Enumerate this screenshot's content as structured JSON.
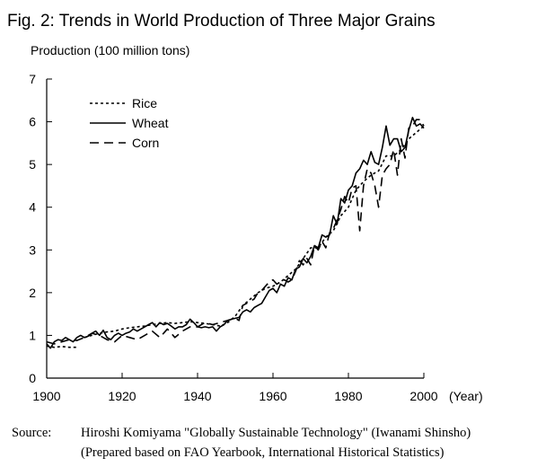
{
  "chart_data": {
    "type": "line",
    "title": "Fig. 2: Trends in World Production of Three Major Grains",
    "ylabel": "Production (100 million tons)",
    "xlabel": "(Year)",
    "xlim": [
      1900,
      2000
    ],
    "ylim": [
      0,
      7
    ],
    "xticks": [
      1900,
      1920,
      1940,
      1960,
      1980,
      2000
    ],
    "yticks": [
      0,
      1,
      2,
      3,
      4,
      5,
      6,
      7
    ],
    "grid": false,
    "legend_position": "top-left",
    "series": [
      {
        "name": "Rice",
        "style": "dotted",
        "segments": [
          [
            [
              1900,
              0.75
            ],
            [
              1902,
              0.72
            ],
            [
              1904,
              0.74
            ],
            [
              1906,
              0.72
            ],
            [
              1908,
              0.72
            ]
          ],
          [
            [
              1910,
              0.95
            ],
            [
              1912,
              1.0
            ],
            [
              1914,
              1.05
            ],
            [
              1916,
              1.08
            ],
            [
              1918,
              1.1
            ],
            [
              1920,
              1.15
            ],
            [
              1922,
              1.18
            ],
            [
              1924,
              1.2
            ],
            [
              1926,
              1.22
            ],
            [
              1928,
              1.25
            ],
            [
              1930,
              1.28
            ],
            [
              1932,
              1.3
            ],
            [
              1934,
              1.28
            ],
            [
              1936,
              1.3
            ],
            [
              1938,
              1.32
            ],
            [
              1940,
              1.3
            ],
            [
              1942,
              1.28
            ],
            [
              1944,
              1.25
            ],
            [
              1946,
              1.22
            ],
            [
              1948,
              1.3
            ],
            [
              1950,
              1.45
            ],
            [
              1952,
              1.7
            ],
            [
              1954,
              1.85
            ],
            [
              1956,
              2.0
            ],
            [
              1958,
              2.1
            ],
            [
              1960,
              2.15
            ],
            [
              1962,
              2.25
            ],
            [
              1964,
              2.4
            ],
            [
              1966,
              2.55
            ],
            [
              1968,
              2.8
            ],
            [
              1970,
              3.05
            ],
            [
              1972,
              3.05
            ],
            [
              1974,
              3.3
            ],
            [
              1976,
              3.45
            ],
            [
              1978,
              3.8
            ],
            [
              1980,
              4.0
            ],
            [
              1982,
              4.4
            ],
            [
              1984,
              4.6
            ],
            [
              1986,
              4.75
            ],
            [
              1988,
              4.85
            ],
            [
              1990,
              5.2
            ],
            [
              1992,
              5.2
            ],
            [
              1994,
              5.35
            ],
            [
              1996,
              5.6
            ],
            [
              1998,
              5.75
            ],
            [
              2000,
              5.9
            ]
          ]
        ]
      },
      {
        "name": "Wheat",
        "style": "solid",
        "segments": [
          [
            [
              1900,
              0.8
            ],
            [
              1901,
              0.7
            ],
            [
              1902,
              0.85
            ],
            [
              1903,
              0.9
            ],
            [
              1904,
              0.88
            ],
            [
              1905,
              0.95
            ],
            [
              1906,
              0.9
            ],
            [
              1907,
              0.85
            ],
            [
              1908,
              0.95
            ],
            [
              1909,
              1.0
            ],
            [
              1910,
              0.95
            ],
            [
              1911,
              0.98
            ],
            [
              1912,
              1.05
            ],
            [
              1913,
              1.1
            ],
            [
              1914,
              1.0
            ],
            [
              1915,
              1.12
            ],
            [
              1916,
              0.95
            ],
            [
              1917,
              0.9
            ],
            [
              1918,
              1.0
            ],
            [
              1919,
              1.05
            ],
            [
              1920,
              1.0
            ],
            [
              1921,
              1.05
            ],
            [
              1922,
              1.08
            ],
            [
              1923,
              1.15
            ],
            [
              1924,
              1.1
            ],
            [
              1925,
              1.15
            ],
            [
              1926,
              1.2
            ],
            [
              1927,
              1.25
            ],
            [
              1928,
              1.3
            ],
            [
              1929,
              1.2
            ],
            [
              1930,
              1.3
            ],
            [
              1931,
              1.25
            ],
            [
              1932,
              1.28
            ],
            [
              1933,
              1.22
            ],
            [
              1934,
              1.15
            ],
            [
              1935,
              1.2
            ],
            [
              1936,
              1.2
            ],
            [
              1937,
              1.25
            ],
            [
              1938,
              1.38
            ],
            [
              1939,
              1.3
            ],
            [
              1940,
              1.2
            ],
            [
              1941,
              1.18
            ],
            [
              1942,
              1.2
            ],
            [
              1943,
              1.18
            ],
            [
              1944,
              1.2
            ],
            [
              1945,
              1.1
            ],
            [
              1946,
              1.2
            ],
            [
              1947,
              1.25
            ],
            [
              1948,
              1.35
            ],
            [
              1949,
              1.38
            ],
            [
              1950,
              1.4
            ],
            [
              1951,
              1.42
            ],
            [
              1952,
              1.55
            ],
            [
              1953,
              1.6
            ],
            [
              1954,
              1.55
            ],
            [
              1955,
              1.65
            ],
            [
              1956,
              1.7
            ],
            [
              1957,
              1.75
            ],
            [
              1958,
              1.9
            ],
            [
              1959,
              2.05
            ],
            [
              1960,
              2.1
            ],
            [
              1961,
              2.0
            ],
            [
              1962,
              2.2
            ],
            [
              1963,
              2.15
            ],
            [
              1964,
              2.35
            ],
            [
              1965,
              2.3
            ],
            [
              1966,
              2.55
            ],
            [
              1967,
              2.6
            ],
            [
              1968,
              2.8
            ],
            [
              1969,
              2.7
            ],
            [
              1970,
              2.85
            ],
            [
              1971,
              3.1
            ],
            [
              1972,
              3.05
            ],
            [
              1973,
              3.35
            ],
            [
              1974,
              3.3
            ],
            [
              1975,
              3.35
            ],
            [
              1976,
              3.8
            ],
            [
              1977,
              3.6
            ],
            [
              1978,
              4.2
            ],
            [
              1979,
              4.1
            ],
            [
              1980,
              4.4
            ],
            [
              1981,
              4.5
            ],
            [
              1982,
              4.8
            ],
            [
              1983,
              4.9
            ],
            [
              1984,
              5.1
            ],
            [
              1985,
              5.0
            ],
            [
              1986,
              5.3
            ],
            [
              1987,
              5.05
            ],
            [
              1988,
              5.0
            ],
            [
              1989,
              5.4
            ],
            [
              1990,
              5.9
            ],
            [
              1991,
              5.45
            ],
            [
              1992,
              5.6
            ],
            [
              1993,
              5.6
            ],
            [
              1994,
              5.3
            ],
            [
              1995,
              5.4
            ],
            [
              1996,
              5.8
            ],
            [
              1997,
              6.1
            ],
            [
              1998,
              5.9
            ],
            [
              1999,
              5.95
            ],
            [
              2000,
              5.85
            ]
          ]
        ]
      },
      {
        "name": "Corn",
        "style": "dashed",
        "segments": [
          [
            [
              1900,
              0.85
            ],
            [
              1902,
              0.8
            ],
            [
              1904,
              0.85
            ],
            [
              1906,
              0.9
            ],
            [
              1908,
              0.88
            ],
            [
              1910,
              0.95
            ],
            [
              1912,
              1.05
            ],
            [
              1914,
              1.0
            ],
            [
              1916,
              0.9
            ],
            [
              1918,
              0.85
            ],
            [
              1920,
              1.0
            ],
            [
              1922,
              0.95
            ],
            [
              1924,
              0.9
            ],
            [
              1926,
              1.0
            ],
            [
              1928,
              1.1
            ],
            [
              1930,
              0.95
            ],
            [
              1932,
              1.15
            ],
            [
              1934,
              0.95
            ],
            [
              1936,
              1.1
            ],
            [
              1938,
              1.2
            ],
            [
              1940,
              1.2
            ],
            [
              1942,
              1.3
            ],
            [
              1944,
              1.25
            ],
            [
              1946,
              1.3
            ],
            [
              1948,
              1.35
            ],
            [
              1950,
              1.4
            ],
            [
              1951,
              1.35
            ],
            [
              1952,
              1.7
            ],
            [
              1953,
              1.75
            ],
            [
              1954,
              1.8
            ],
            [
              1955,
              1.85
            ],
            [
              1956,
              2.0
            ],
            [
              1957,
              2.05
            ],
            [
              1958,
              2.15
            ],
            [
              1959,
              2.25
            ],
            [
              1960,
              2.3
            ],
            [
              1961,
              2.2
            ],
            [
              1962,
              2.25
            ],
            [
              1963,
              2.3
            ],
            [
              1964,
              2.25
            ],
            [
              1965,
              2.3
            ],
            [
              1966,
              2.5
            ],
            [
              1967,
              2.75
            ],
            [
              1968,
              2.65
            ],
            [
              1969,
              2.8
            ],
            [
              1970,
              2.65
            ],
            [
              1971,
              3.1
            ],
            [
              1972,
              3.0
            ],
            [
              1973,
              3.2
            ],
            [
              1974,
              3.05
            ],
            [
              1975,
              3.4
            ],
            [
              1976,
              3.5
            ],
            [
              1977,
              3.7
            ],
            [
              1978,
              3.95
            ],
            [
              1979,
              4.25
            ],
            [
              1980,
              4.1
            ],
            [
              1981,
              4.45
            ],
            [
              1982,
              4.5
            ],
            [
              1983,
              3.45
            ],
            [
              1984,
              4.5
            ],
            [
              1985,
              4.9
            ],
            [
              1986,
              4.8
            ],
            [
              1987,
              4.5
            ],
            [
              1988,
              4.0
            ],
            [
              1989,
              4.75
            ],
            [
              1990,
              4.9
            ],
            [
              1991,
              5.0
            ],
            [
              1992,
              5.35
            ],
            [
              1993,
              4.75
            ],
            [
              1994,
              5.6
            ],
            [
              1995,
              5.15
            ],
            [
              1996,
              5.85
            ],
            [
              1997,
              5.9
            ],
            [
              1998,
              6.05
            ],
            [
              1999,
              6.05
            ],
            [
              2000,
              5.9
            ]
          ]
        ]
      }
    ],
    "source": {
      "label": "Source:",
      "line1": "Hiroshi Komiyama \"Globally Sustainable Technology\" (Iwanami Shinsho)",
      "line2": "(Prepared based on FAO Yearbook, International Historical Statistics)"
    }
  }
}
